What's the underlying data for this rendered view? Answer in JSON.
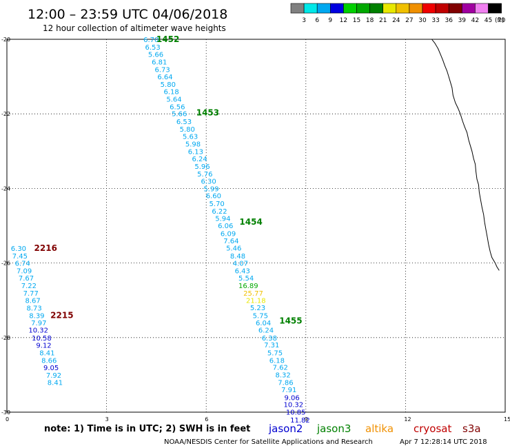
{
  "header": {
    "title": "12:00 – 23:59 UTC 04/06/2018",
    "subtitle": "12 hour collection of altimeter wave heights"
  },
  "scale": {
    "colors": [
      "#808080",
      "#00e8e8",
      "#00a8f0",
      "#0000e0",
      "#00d000",
      "#00a800",
      "#008000",
      "#e8e800",
      "#f0c000",
      "#f09000",
      "#f00000",
      "#c00000",
      "#800000",
      "#a000a0",
      "#f080f0",
      "#000000"
    ],
    "labels": [
      "3",
      "6",
      "9",
      "12",
      "15",
      "18",
      "21",
      "24",
      "27",
      "30",
      "33",
      "36",
      "39",
      "42",
      "45",
      "70"
    ],
    "unit": "(ft)"
  },
  "footer": {
    "note": "note:  1) Time is in UTC;  2) SWH is in feet",
    "credit": "NOAA/NESDIS Center for Satellite Applications and Research",
    "timestamp": "Apr  7 12:28:14 UTC 2018"
  },
  "satellites": [
    {
      "name": "jason2",
      "color": "#0000d0"
    },
    {
      "name": "jason3",
      "color": "#008000"
    },
    {
      "name": "altika",
      "color": "#f09000"
    },
    {
      "name": "cryosat",
      "color": "#c00000"
    },
    {
      "name": "s3a",
      "color": "#800000"
    }
  ],
  "chart_data": {
    "type": "scatter",
    "xlim": [
      0,
      15
    ],
    "ylim": [
      -30,
      -20
    ],
    "xticks": [
      "0",
      "3",
      "6",
      "9",
      "12",
      "15"
    ],
    "yticks": [
      "-20",
      "-22",
      "-24",
      "-26",
      "-28",
      "-30"
    ],
    "grid": "dotted",
    "tracks": [
      {
        "labels": [
          {
            "text": "1452",
            "x": 4.5,
            "y": -20.0,
            "color": "#008000"
          },
          {
            "text": "1453",
            "x": 5.7,
            "y": -21.97,
            "color": "#008000"
          },
          {
            "text": "1454",
            "x": 7.0,
            "y": -24.9,
            "color": "#008000"
          },
          {
            "text": "1455",
            "x": 8.2,
            "y": -27.55,
            "color": "#008000"
          }
        ],
        "points": [
          {
            "v": "6.70",
            "x": 4.11,
            "y": -20.0,
            "color": "#00a8f0"
          },
          {
            "v": "6.53",
            "x": 4.16,
            "y": -20.2,
            "color": "#00a8f0"
          },
          {
            "v": "5.66",
            "x": 4.25,
            "y": -20.4,
            "color": "#00a8f0"
          },
          {
            "v": "6.81",
            "x": 4.36,
            "y": -20.6,
            "color": "#00a8f0"
          },
          {
            "v": "6.73",
            "x": 4.45,
            "y": -20.8,
            "color": "#00a8f0"
          },
          {
            "v": "6.64",
            "x": 4.53,
            "y": -21.0,
            "color": "#00a8f0"
          },
          {
            "v": "5.80",
            "x": 4.62,
            "y": -21.2,
            "color": "#00a8f0"
          },
          {
            "v": "6.18",
            "x": 4.72,
            "y": -21.4,
            "color": "#00a8f0"
          },
          {
            "v": "5.64",
            "x": 4.8,
            "y": -21.6,
            "color": "#00a8f0"
          },
          {
            "v": "6.56",
            "x": 4.9,
            "y": -21.8,
            "color": "#00a8f0"
          },
          {
            "v": "5.66",
            "x": 4.96,
            "y": -21.99,
            "color": "#00a8f0"
          },
          {
            "v": "6.53",
            "x": 5.1,
            "y": -22.2,
            "color": "#00a8f0"
          },
          {
            "v": "5.80",
            "x": 5.2,
            "y": -22.4,
            "color": "#00a8f0"
          },
          {
            "v": "5.63",
            "x": 5.29,
            "y": -22.6,
            "color": "#00a8f0"
          },
          {
            "v": "5.98",
            "x": 5.37,
            "y": -22.8,
            "color": "#00a8f0"
          },
          {
            "v": "6.13",
            "x": 5.45,
            "y": -23.0,
            "color": "#00a8f0"
          },
          {
            "v": "6.24",
            "x": 5.57,
            "y": -23.2,
            "color": "#00a8f0"
          },
          {
            "v": "5.96",
            "x": 5.65,
            "y": -23.4,
            "color": "#00a8f0"
          },
          {
            "v": "5.76",
            "x": 5.73,
            "y": -23.6,
            "color": "#00a8f0"
          },
          {
            "v": "6.30",
            "x": 5.84,
            "y": -23.8,
            "color": "#00a8f0"
          },
          {
            "v": "5.99",
            "x": 5.92,
            "y": -24.0,
            "color": "#00a8f0"
          },
          {
            "v": "6.60",
            "x": 5.99,
            "y": -24.19,
            "color": "#00a8f0"
          },
          {
            "v": "5.70",
            "x": 6.09,
            "y": -24.4,
            "color": "#00a8f0"
          },
          {
            "v": "6.22",
            "x": 6.17,
            "y": -24.6,
            "color": "#00a8f0"
          },
          {
            "v": "5.94",
            "x": 6.27,
            "y": -24.8,
            "color": "#00a8f0"
          },
          {
            "v": "6.06",
            "x": 6.35,
            "y": -24.99,
            "color": "#00a8f0"
          },
          {
            "v": "6.09",
            "x": 6.43,
            "y": -25.2,
            "color": "#00a8f0"
          },
          {
            "v": "7.64",
            "x": 6.52,
            "y": -25.4,
            "color": "#00a8f0"
          },
          {
            "v": "5.46",
            "x": 6.6,
            "y": -25.59,
            "color": "#00a8f0"
          },
          {
            "v": "8.48",
            "x": 6.72,
            "y": -25.8,
            "color": "#00a8f0"
          },
          {
            "v": "4.07",
            "x": 6.8,
            "y": -26.0,
            "color": "#00a8f0"
          },
          {
            "v": "6.43",
            "x": 6.86,
            "y": -26.2,
            "color": "#00a8f0"
          },
          {
            "v": "5.54",
            "x": 6.97,
            "y": -26.4,
            "color": "#00a8f0"
          },
          {
            "v": "16.89",
            "x": 6.97,
            "y": -26.6,
            "color": "#00a800"
          },
          {
            "v": "25.77",
            "x": 7.12,
            "y": -26.8,
            "color": "#f0c000"
          },
          {
            "v": "21.18",
            "x": 7.2,
            "y": -27.0,
            "color": "#e8e800"
          },
          {
            "v": "5.23",
            "x": 7.32,
            "y": -27.19,
            "color": "#00a8f0"
          },
          {
            "v": "5.75",
            "x": 7.4,
            "y": -27.4,
            "color": "#00a8f0"
          },
          {
            "v": "6.04",
            "x": 7.49,
            "y": -27.6,
            "color": "#00a8f0"
          },
          {
            "v": "6.24",
            "x": 7.57,
            "y": -27.79,
            "color": "#00a8f0"
          },
          {
            "v": "6.38",
            "x": 7.67,
            "y": -28.0,
            "color": "#00a8f0"
          },
          {
            "v": "7.31",
            "x": 7.74,
            "y": -28.19,
            "color": "#00a8f0"
          },
          {
            "v": "5.75",
            "x": 7.84,
            "y": -28.4,
            "color": "#00a8f0"
          },
          {
            "v": "6.18",
            "x": 7.9,
            "y": -28.6,
            "color": "#00a8f0"
          },
          {
            "v": "7.62",
            "x": 8.0,
            "y": -28.79,
            "color": "#00a8f0"
          },
          {
            "v": "8.32",
            "x": 8.08,
            "y": -28.99,
            "color": "#00a8f0"
          },
          {
            "v": "7.86",
            "x": 8.16,
            "y": -29.2,
            "color": "#00a8f0"
          },
          {
            "v": "7.91",
            "x": 8.26,
            "y": -29.39,
            "color": "#00a8f0"
          },
          {
            "v": "9.06",
            "x": 8.35,
            "y": -29.6,
            "color": "#0000d0"
          },
          {
            "v": "10.32",
            "x": 8.33,
            "y": -29.79,
            "color": "#0000d0"
          },
          {
            "v": "10.85",
            "x": 8.4,
            "y": -29.99,
            "color": "#0000d0"
          },
          {
            "v": "11.82",
            "x": 8.53,
            "y": -30.2,
            "color": "#0000d0"
          }
        ]
      },
      {
        "labels": [
          {
            "text": "2216",
            "x": 0.82,
            "y": -25.6,
            "color": "#800000"
          },
          {
            "text": "2215",
            "x": 1.31,
            "y": -27.4,
            "color": "#800000"
          }
        ],
        "points": [
          {
            "v": "6.30",
            "x": 0.12,
            "y": -25.6,
            "color": "#00a8f0"
          },
          {
            "v": "7.45",
            "x": 0.16,
            "y": -25.8,
            "color": "#00a8f0"
          },
          {
            "v": "6.74",
            "x": 0.24,
            "y": -26.0,
            "color": "#00a8f0"
          },
          {
            "v": "7.09",
            "x": 0.29,
            "y": -26.2,
            "color": "#00a8f0"
          },
          {
            "v": "7.67",
            "x": 0.35,
            "y": -26.4,
            "color": "#00a8f0"
          },
          {
            "v": "7.22",
            "x": 0.43,
            "y": -26.6,
            "color": "#00a8f0"
          },
          {
            "v": "7.77",
            "x": 0.49,
            "y": -26.8,
            "color": "#00a8f0"
          },
          {
            "v": "8.67",
            "x": 0.55,
            "y": -27.0,
            "color": "#00a8f0"
          },
          {
            "v": "8.73",
            "x": 0.59,
            "y": -27.2,
            "color": "#00a8f0"
          },
          {
            "v": "8.39",
            "x": 0.67,
            "y": -27.4,
            "color": "#00a8f0"
          },
          {
            "v": "7.97",
            "x": 0.73,
            "y": -27.6,
            "color": "#00a8f0"
          },
          {
            "v": "10.32",
            "x": 0.65,
            "y": -27.79,
            "color": "#0000d0"
          },
          {
            "v": "10.58",
            "x": 0.75,
            "y": -28.0,
            "color": "#0000d0"
          },
          {
            "v": "9.12",
            "x": 0.88,
            "y": -28.2,
            "color": "#0000d0"
          },
          {
            "v": "8.41",
            "x": 0.98,
            "y": -28.4,
            "color": "#00a8f0"
          },
          {
            "v": "8.66",
            "x": 1.04,
            "y": -28.6,
            "color": "#00a8f0"
          },
          {
            "v": "9.05",
            "x": 1.1,
            "y": -28.8,
            "color": "#0000d0"
          },
          {
            "v": "7.92",
            "x": 1.18,
            "y": -29.0,
            "color": "#00a8f0"
          },
          {
            "v": "8.41",
            "x": 1.22,
            "y": -29.2,
            "color": "#00a8f0"
          }
        ]
      }
    ],
    "coastline": [
      [
        12.79,
        -20.0
      ],
      [
        12.88,
        -20.1
      ],
      [
        12.98,
        -20.25
      ],
      [
        13.05,
        -20.4
      ],
      [
        13.12,
        -20.55
      ],
      [
        13.18,
        -20.7
      ],
      [
        13.25,
        -20.85
      ],
      [
        13.3,
        -21.0
      ],
      [
        13.35,
        -21.15
      ],
      [
        13.4,
        -21.3
      ],
      [
        13.43,
        -21.5
      ],
      [
        13.5,
        -21.7
      ],
      [
        13.58,
        -21.85
      ],
      [
        13.65,
        -22.0
      ],
      [
        13.72,
        -22.2
      ],
      [
        13.78,
        -22.35
      ],
      [
        13.85,
        -22.5
      ],
      [
        13.9,
        -22.7
      ],
      [
        13.95,
        -22.85
      ],
      [
        14.0,
        -23.0
      ],
      [
        14.05,
        -23.2
      ],
      [
        14.1,
        -23.35
      ],
      [
        14.12,
        -23.55
      ],
      [
        14.15,
        -23.75
      ],
      [
        14.2,
        -23.9
      ],
      [
        14.22,
        -24.1
      ],
      [
        14.26,
        -24.3
      ],
      [
        14.3,
        -24.5
      ],
      [
        14.35,
        -24.7
      ],
      [
        14.38,
        -24.9
      ],
      [
        14.42,
        -25.1
      ],
      [
        14.46,
        -25.3
      ],
      [
        14.5,
        -25.5
      ],
      [
        14.55,
        -25.7
      ],
      [
        14.6,
        -25.85
      ],
      [
        14.7,
        -26.0
      ],
      [
        14.75,
        -26.1
      ],
      [
        14.82,
        -26.2
      ]
    ]
  }
}
